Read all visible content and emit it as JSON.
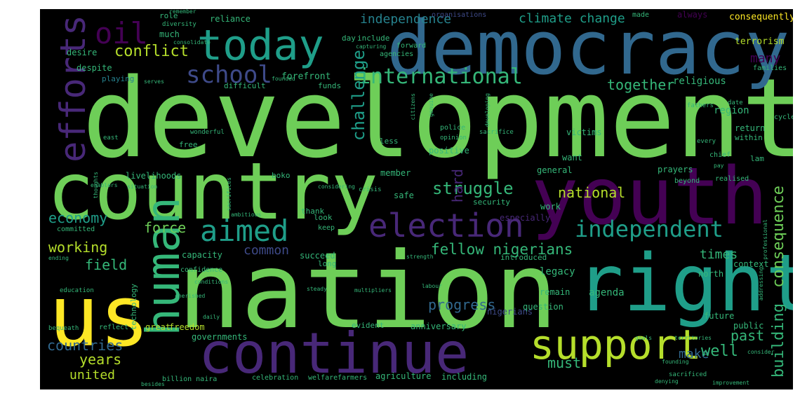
{
  "wordcloud": {
    "palette": {
      "purple": "#440154",
      "violet": "#482878",
      "indigo": "#3e4a89",
      "blue": "#31688e",
      "teal": "#26828e",
      "aqua": "#1f9e89",
      "green": "#35b779",
      "lime": "#6ece58",
      "chartreuse": "#b5de2b",
      "yellow": "#fde725"
    },
    "words": {
      "development": "development",
      "nation": "nation",
      "democracy": "democracy",
      "country": "country",
      "youth": "youth",
      "right": "right",
      "us": "us",
      "continue": "continue",
      "human": "human",
      "support": "support",
      "today": "today",
      "oil": "oil",
      "efforts": "efforts",
      "election": "election",
      "aimed": "aimed",
      "international": "international",
      "school": "school",
      "independent": "independent",
      "conflict": "conflict",
      "independence": "independence",
      "climate_change": "climate change",
      "fellow_nigerians": "fellow nigerians",
      "struggle": "struggle",
      "challenge": "challenge",
      "consequence": "consequence",
      "building": "building",
      "together": "together",
      "national": "national",
      "force": "force",
      "economy": "economy",
      "working": "working",
      "field": "field",
      "common": "common",
      "progress": "progress",
      "countries": "countries",
      "years": "years",
      "united": "united",
      "must": "must",
      "make": "make",
      "well": "well",
      "past": "past",
      "times": "times",
      "many": "many",
      "hard": "hard",
      "religious": "religious",
      "region": "region",
      "terrorism": "terrorism",
      "consequently": "consequently",
      "forefront": "forefront",
      "playing": "playing",
      "despite": "despite",
      "desire": "desire",
      "livelihoods": "livelihoods",
      "reliance": "reliance",
      "much": "much",
      "role": "role",
      "always": "always",
      "organisations": "organisations",
      "victims": "victims",
      "return": "return",
      "within": "within",
      "positive": "positive",
      "member": "member",
      "safe": "safe",
      "especially": "especially",
      "capacity": "capacity",
      "succeed": "succeed",
      "legacy": "legacy",
      "remain": "remain",
      "agenda": "agenda",
      "north": "north",
      "context": "context",
      "nigerians": "nigerians",
      "future": "future",
      "public": "public",
      "anniversary": "anniversary",
      "evident": "evident",
      "governments": "governments",
      "great": "great",
      "freedom": "freedom",
      "agriculture": "agriculture",
      "including": "including",
      "celebration": "celebration",
      "welfare": "welfare",
      "farmers": "farmers",
      "billion_naira": "billion naira",
      "general": "general",
      "want": "want",
      "work": "work",
      "introduced": "introduced",
      "funds": "funds",
      "less": "less",
      "security": "security",
      "free": "free",
      "boko": "boko",
      "look": "look",
      "long": "long",
      "keep": "keep",
      "question": "question",
      "difficult": "difficult",
      "diversity": "diversity",
      "day": "day",
      "include": "include",
      "agencies": "agencies",
      "forward": "forward",
      "prayers": "prayers",
      "beyond": "beyond",
      "realised": "realised",
      "lam": "lam",
      "chief": "chief",
      "every": "every",
      "cycle": "cycle",
      "date": "date",
      "families": "families",
      "fathers": "fathers",
      "opinion": "opinion",
      "thank": "thank",
      "technology": "technology",
      "committed": "committed",
      "education": "education",
      "reflect": "reflect",
      "bequeath": "bequeath",
      "confidence": "confidence",
      "sacrificed": "sacrificed",
      "territories": "territories",
      "goals": "goals",
      "pay": "pay",
      "police": "police",
      "crisis": "crisis",
      "wonderful": "wonderful",
      "sacrifice": "sacrifice",
      "east": "east",
      "situation": "situation",
      "enablers": "enablers",
      "considering": "considering",
      "strength": "strength",
      "conditions": "conditions",
      "ambitious": "ambitious",
      "cherished": "cherished",
      "steady": "steady",
      "labour": "labour",
      "founding": "founding",
      "denying": "denying",
      "consider": "consider",
      "professional": "professional",
      "improvement": "improvement",
      "multipliers": "multipliers",
      "addressing": "addressing",
      "remember": "remember",
      "consolidate": "consolidate",
      "capturing": "capturing",
      "founded": "founded",
      "serves": "serves",
      "made": "made",
      "daily": "daily",
      "thoughts": "thoughts",
      "ending": "ending",
      "besides": "besides",
      "genuine": "genuine",
      "sacrifices": "sacrifices",
      "citizens": "citizens",
      "developing": "developing"
    }
  }
}
